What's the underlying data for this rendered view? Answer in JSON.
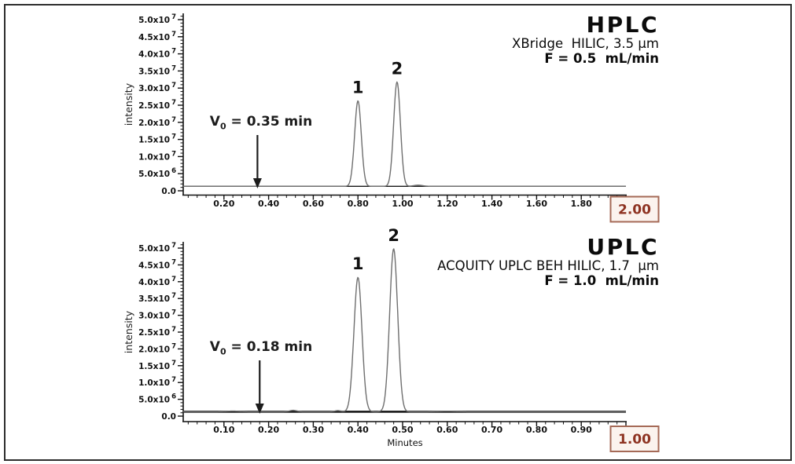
{
  "colors": {
    "accent_box_border": "#a56a57",
    "accent_box_text": "#8e3322",
    "accent_box_fill": "#fbf3ee",
    "trace": "#6f6f6f",
    "baseline": "#161616",
    "text": "#111111"
  },
  "chart_data": {
    "type": "line",
    "panels": [
      {
        "name": "hplc",
        "title": "HPLC",
        "column_info": "XBridge  HILIC, 3.5 µm",
        "flow_rate": "F = 0.5  mL/min",
        "ylabel": "intensity",
        "xlabel": "",
        "xlim": [
          0,
          2.0
        ],
        "ylim": [
          0,
          52000000
        ],
        "x_major_ticks": [
          0.2,
          0.4,
          0.6,
          0.8,
          1.0,
          1.2,
          1.4,
          1.6,
          1.8
        ],
        "x_tick_labels": [
          "0.20",
          "0.40",
          "0.60",
          "0.80",
          "1.00",
          "1.20",
          "1.40",
          "1.60",
          "1.80"
        ],
        "x_minor_step": 0.04,
        "x_end_label": "2.00",
        "y_ticks": [
          {
            "value": 0,
            "mantissa": "0.0",
            "exponent": ""
          },
          {
            "value": 5000000,
            "mantissa": "5.0x10",
            "exponent": "6"
          },
          {
            "value": 10000000,
            "mantissa": "1.0x10",
            "exponent": "7"
          },
          {
            "value": 15000000,
            "mantissa": "1.5x10",
            "exponent": "7"
          },
          {
            "value": 20000000,
            "mantissa": "2.0x10",
            "exponent": "7"
          },
          {
            "value": 25000000,
            "mantissa": "2.5x10",
            "exponent": "7"
          },
          {
            "value": 30000000,
            "mantissa": "3.0x10",
            "exponent": "7"
          },
          {
            "value": 35000000,
            "mantissa": "3.5x10",
            "exponent": "7"
          },
          {
            "value": 40000000,
            "mantissa": "4.0x10",
            "exponent": "7"
          },
          {
            "value": 45000000,
            "mantissa": "4.5x10",
            "exponent": "7"
          },
          {
            "value": 50000000,
            "mantissa": "5.0x10",
            "exponent": "7"
          }
        ],
        "baseline_intensity": 1300000,
        "peaks": [
          {
            "label": "1",
            "retention_time": 0.8,
            "intensity": 25000000,
            "sigma": 0.015
          },
          {
            "label": "2",
            "retention_time": 0.975,
            "intensity": 30500000,
            "sigma": 0.015
          }
        ],
        "baseline_noise": [
          {
            "retention_time": 1.07,
            "intensity": 350000,
            "sigma": 0.02
          }
        ],
        "void_marker": {
          "symbol": "V",
          "subscript": "0",
          "value_text": " = 0.35 min",
          "retention_time": 0.35
        }
      },
      {
        "name": "uplc",
        "title": "UPLC",
        "column_info": "ACQUITY UPLC BEH HILIC, 1.7  µm",
        "flow_rate": "F = 1.0  mL/min",
        "ylabel": "intensity",
        "xlabel": "Minutes",
        "xlim": [
          0,
          1.0
        ],
        "ylim": [
          0,
          52000000
        ],
        "x_major_ticks": [
          0.1,
          0.2,
          0.3,
          0.4,
          0.5,
          0.6,
          0.7,
          0.8,
          0.9
        ],
        "x_tick_labels": [
          "0.10",
          "0.20",
          "0.30",
          "0.40",
          "0.50",
          "0.60",
          "0.70",
          "0.80",
          "0.90"
        ],
        "x_minor_step": 0.02,
        "x_end_label": "1.00",
        "y_ticks": [
          {
            "value": 0,
            "mantissa": "0.0",
            "exponent": ""
          },
          {
            "value": 5000000,
            "mantissa": "5.0x10",
            "exponent": "6"
          },
          {
            "value": 10000000,
            "mantissa": "1.0x10",
            "exponent": "7"
          },
          {
            "value": 15000000,
            "mantissa": "1.5x10",
            "exponent": "7"
          },
          {
            "value": 20000000,
            "mantissa": "2.0x10",
            "exponent": "7"
          },
          {
            "value": 25000000,
            "mantissa": "2.5x10",
            "exponent": "7"
          },
          {
            "value": 30000000,
            "mantissa": "3.0x10",
            "exponent": "7"
          },
          {
            "value": 35000000,
            "mantissa": "3.5x10",
            "exponent": "7"
          },
          {
            "value": 40000000,
            "mantissa": "4.0x10",
            "exponent": "7"
          },
          {
            "value": 45000000,
            "mantissa": "4.5x10",
            "exponent": "7"
          },
          {
            "value": 50000000,
            "mantissa": "5.0x10",
            "exponent": "7"
          }
        ],
        "baseline_intensity": 1300000,
        "peaks": [
          {
            "label": "1",
            "retention_time": 0.4,
            "intensity": 40000000,
            "sigma": 0.009
          },
          {
            "label": "2",
            "retention_time": 0.48,
            "intensity": 48500000,
            "sigma": 0.009
          }
        ],
        "baseline_noise": [
          {
            "retention_time": 0.12,
            "intensity": 200000,
            "sigma": 0.015
          },
          {
            "retention_time": 0.255,
            "intensity": 420000,
            "sigma": 0.008
          },
          {
            "retention_time": 0.355,
            "intensity": 330000,
            "sigma": 0.007
          },
          {
            "retention_time": 0.6,
            "intensity": 180000,
            "sigma": 0.02
          }
        ],
        "void_marker": {
          "symbol": "V",
          "subscript": "0",
          "value_text": " = 0.18 min",
          "retention_time": 0.18
        }
      }
    ]
  }
}
